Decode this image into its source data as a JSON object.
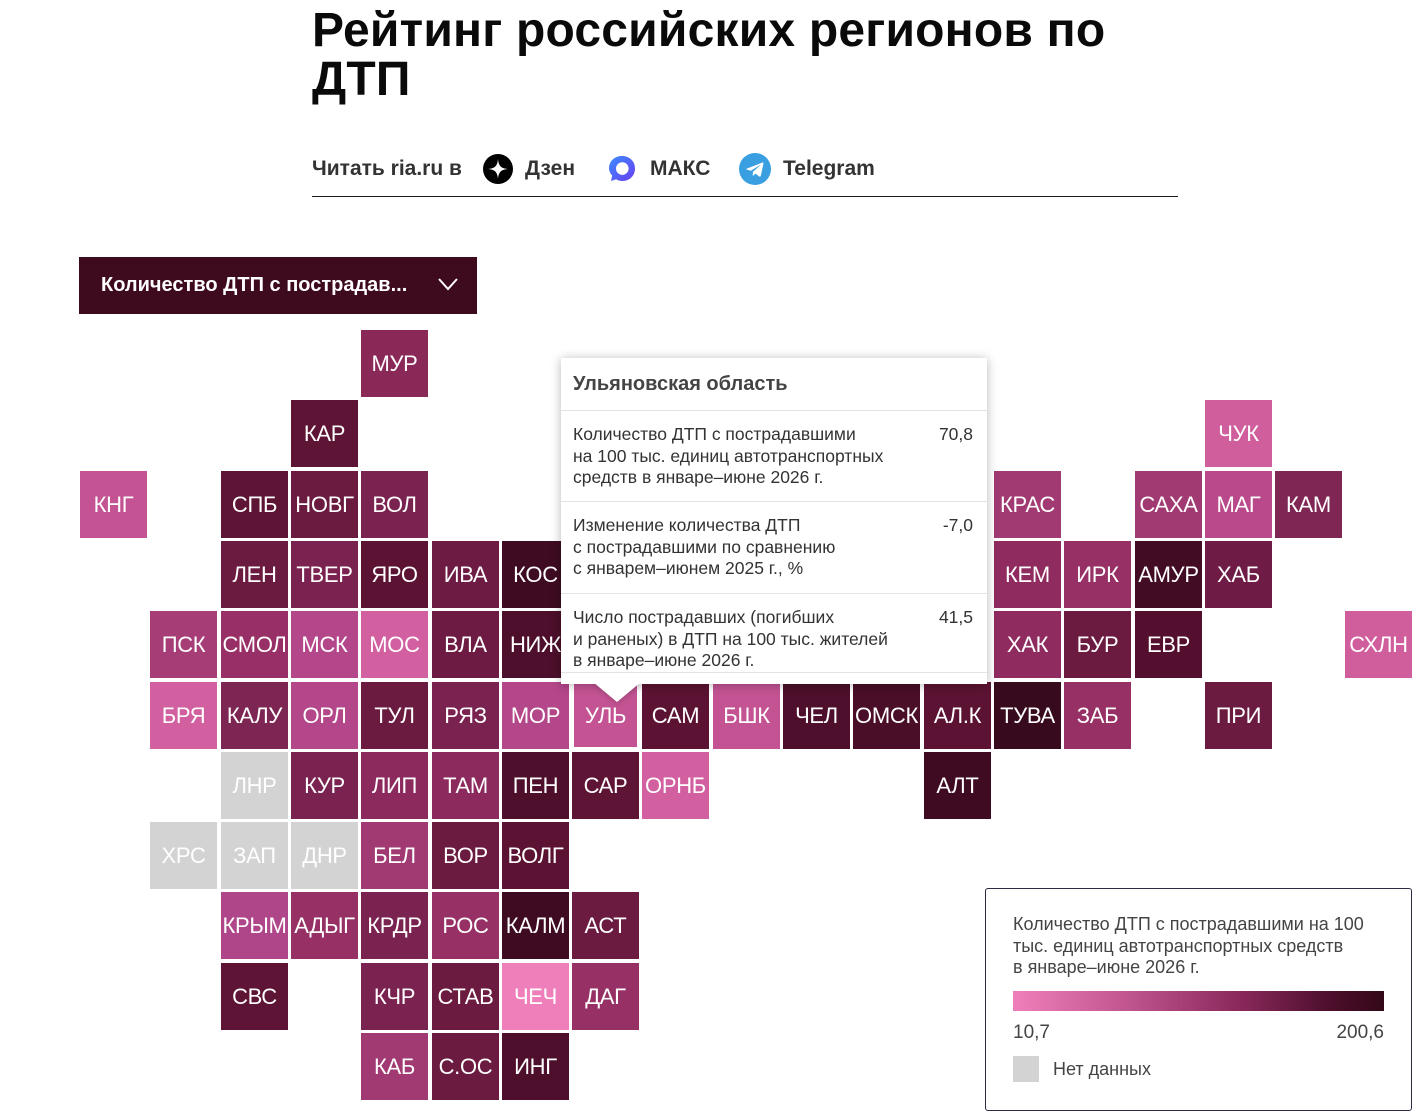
{
  "title": "Рейтинг российских регионов по ДТП",
  "read_bar": {
    "lead": "Читать ria.ru в",
    "links": [
      {
        "label": "Дзен",
        "icon": "dzen-icon"
      },
      {
        "label": "МАКС",
        "icon": "max-icon"
      },
      {
        "label": "Telegram",
        "icon": "telegram-icon"
      }
    ]
  },
  "dropdown": {
    "selected": "Количество ДТП с пострадав...",
    "icon": "chevron-down-icon"
  },
  "colors": {
    "no_data": "#d3d3d3",
    "scale": [
      "#ee7fba",
      "#c25691",
      "#8c2a5d",
      "#4e0f2c",
      "#330818"
    ],
    "dropdown_bg": "#3e0a1e"
  },
  "tiles": [
    {
      "label": "МУР",
      "color": "#8a2858",
      "row": 0,
      "col": 4
    },
    {
      "label": "КАР",
      "color": "#5e1434",
      "row": 1,
      "col": 3
    },
    {
      "label": "ЧУК",
      "color": "#d05e9d",
      "row": 1,
      "col": 16
    },
    {
      "label": "КНГ",
      "color": "#c35393",
      "row": 2,
      "col": 0
    },
    {
      "label": "СПБ",
      "color": "#5e1434",
      "row": 2,
      "col": 2
    },
    {
      "label": "НОВГ",
      "color": "#6b1a40",
      "row": 2,
      "col": 3
    },
    {
      "label": "ВОЛ",
      "color": "#7a2350",
      "row": 2,
      "col": 4
    },
    {
      "label": "КРАС",
      "color": "#a13a72",
      "row": 2,
      "col": 13
    },
    {
      "label": "САХА",
      "color": "#a13a72",
      "row": 2,
      "col": 15
    },
    {
      "label": "МАГ",
      "color": "#b9498a",
      "row": 2,
      "col": 16
    },
    {
      "label": "КАМ",
      "color": "#7f2655",
      "row": 2,
      "col": 17
    },
    {
      "label": "ЛЕН",
      "color": "#6b1a40",
      "row": 3,
      "col": 2
    },
    {
      "label": "ТВЕР",
      "color": "#7a2350",
      "row": 3,
      "col": 3
    },
    {
      "label": "ЯРО",
      "color": "#5c1333",
      "row": 3,
      "col": 4
    },
    {
      "label": "ИВА",
      "color": "#6d1b43",
      "row": 3,
      "col": 5
    },
    {
      "label": "КОС",
      "color": "#3f0b22",
      "row": 3,
      "col": 6
    },
    {
      "label": "КЕМ",
      "color": "#8f2b5f",
      "row": 3,
      "col": 13
    },
    {
      "label": "ИРК",
      "color": "#963065",
      "row": 3,
      "col": 14
    },
    {
      "label": "АМУР",
      "color": "#420c24",
      "row": 3,
      "col": 15
    },
    {
      "label": "ХАБ",
      "color": "#6e1c45",
      "row": 3,
      "col": 16
    },
    {
      "label": "ПСК",
      "color": "#a63d77",
      "row": 4,
      "col": 1
    },
    {
      "label": "СМОЛ",
      "color": "#992f67",
      "row": 4,
      "col": 2
    },
    {
      "label": "МСК",
      "color": "#b4468a",
      "row": 4,
      "col": 3
    },
    {
      "label": "МОС",
      "color": "#d25fa0",
      "row": 4,
      "col": 4
    },
    {
      "label": "ВЛА",
      "color": "#6d1b43",
      "row": 4,
      "col": 5
    },
    {
      "label": "НИЖ",
      "color": "#4d0f2b",
      "row": 4,
      "col": 6
    },
    {
      "label": "ХАК",
      "color": "#8f2b5f",
      "row": 4,
      "col": 13
    },
    {
      "label": "БУР",
      "color": "#6b1a40",
      "row": 4,
      "col": 14
    },
    {
      "label": "ЕВР",
      "color": "#530f2d",
      "row": 4,
      "col": 15
    },
    {
      "label": "СХЛН",
      "color": "#d05e9d",
      "row": 4,
      "col": 18
    },
    {
      "label": "БРЯ",
      "color": "#d25fa0",
      "row": 5,
      "col": 1
    },
    {
      "label": "КАЛУ",
      "color": "#7e2653",
      "row": 5,
      "col": 2
    },
    {
      "label": "ОРЛ",
      "color": "#b4468a",
      "row": 5,
      "col": 3
    },
    {
      "label": "ТУЛ",
      "color": "#6b1a40",
      "row": 5,
      "col": 4
    },
    {
      "label": "РЯЗ",
      "color": "#7a2350",
      "row": 5,
      "col": 5
    },
    {
      "label": "МОР",
      "color": "#b4468a",
      "row": 5,
      "col": 6
    },
    {
      "label": "УЛЬ",
      "color": "#c35393",
      "row": 5,
      "col": 7,
      "selected": true
    },
    {
      "label": "САМ",
      "color": "#5c1333",
      "row": 5,
      "col": 8
    },
    {
      "label": "БШК",
      "color": "#c35393",
      "row": 5,
      "col": 9
    },
    {
      "label": "ЧЕЛ",
      "color": "#4d0f2b",
      "row": 5,
      "col": 10
    },
    {
      "label": "ОМСК",
      "color": "#4a0e28",
      "row": 5,
      "col": 11
    },
    {
      "label": "АЛ.К",
      "color": "#5c1333",
      "row": 5,
      "col": 12
    },
    {
      "label": "ТУВА",
      "color": "#380a1e",
      "row": 5,
      "col": 13
    },
    {
      "label": "ЗАБ",
      "color": "#963065",
      "row": 5,
      "col": 14
    },
    {
      "label": "ПРИ",
      "color": "#6b1a40",
      "row": 5,
      "col": 16
    },
    {
      "label": "ЛНР",
      "color": "#d3d3d3",
      "row": 6,
      "col": 2
    },
    {
      "label": "КУР",
      "color": "#7a2350",
      "row": 6,
      "col": 3
    },
    {
      "label": "ЛИП",
      "color": "#8c2a5d",
      "row": 6,
      "col": 4
    },
    {
      "label": "ТАМ",
      "color": "#8c2a5d",
      "row": 6,
      "col": 5
    },
    {
      "label": "ПЕН",
      "color": "#4d0f2b",
      "row": 6,
      "col": 6
    },
    {
      "label": "САР",
      "color": "#5e1434",
      "row": 6,
      "col": 7
    },
    {
      "label": "ОРНБ",
      "color": "#d25fa0",
      "row": 6,
      "col": 8
    },
    {
      "label": "АЛТ",
      "color": "#3f0b22",
      "row": 6,
      "col": 12
    },
    {
      "label": "ХРС",
      "color": "#d3d3d3",
      "row": 7,
      "col": 1
    },
    {
      "label": "ЗАП",
      "color": "#d3d3d3",
      "row": 7,
      "col": 2
    },
    {
      "label": "ДНР",
      "color": "#d3d3d3",
      "row": 7,
      "col": 3
    },
    {
      "label": "БЕЛ",
      "color": "#a13a72",
      "row": 7,
      "col": 4
    },
    {
      "label": "ВОР",
      "color": "#6b1a40",
      "row": 7,
      "col": 5
    },
    {
      "label": "ВОЛГ",
      "color": "#5c1333",
      "row": 7,
      "col": 6
    },
    {
      "label": "КРЫМ",
      "color": "#b0468a",
      "row": 8,
      "col": 2
    },
    {
      "label": "АДЫГ",
      "color": "#963065",
      "row": 8,
      "col": 3
    },
    {
      "label": "КРДР",
      "color": "#7a2350",
      "row": 8,
      "col": 4
    },
    {
      "label": "РОС",
      "color": "#963065",
      "row": 8,
      "col": 5
    },
    {
      "label": "КАЛМ",
      "color": "#3f0b22",
      "row": 8,
      "col": 6
    },
    {
      "label": "АСТ",
      "color": "#6b1a40",
      "row": 8,
      "col": 7
    },
    {
      "label": "СВС",
      "color": "#5e1434",
      "row": 9,
      "col": 2
    },
    {
      "label": "КЧР",
      "color": "#7a2350",
      "row": 9,
      "col": 4
    },
    {
      "label": "СТАВ",
      "color": "#6b1a40",
      "row": 9,
      "col": 5
    },
    {
      "label": "ЧЕЧ",
      "color": "#ee7fba",
      "row": 9,
      "col": 6
    },
    {
      "label": "ДАГ",
      "color": "#963065",
      "row": 9,
      "col": 7
    },
    {
      "label": "КАБ",
      "color": "#a13a72",
      "row": 10,
      "col": 4
    },
    {
      "label": "С.ОС",
      "color": "#6b1a40",
      "row": 10,
      "col": 5
    },
    {
      "label": "ИНГ",
      "color": "#4d0f2b",
      "row": 10,
      "col": 6
    }
  ],
  "tooltip": {
    "region": "Ульяновская область",
    "rows": [
      {
        "label": "Количество ДТП с пострадавшими\nна 100 тыс. единиц автотранспортных\nсредств в январе–июне 2026 г.",
        "value": "70,8"
      },
      {
        "label": "Изменение количества ДТП\nс пострадавшими по сравнению\nс январем–июнем 2025 г., %",
        "value": "-7,0"
      },
      {
        "label": "Число пострадавших (погибших\nи раненых) в ДТП на 100 тыс. жителей\nв январе–июне 2026 г.",
        "value": "41,5"
      }
    ]
  },
  "legend": {
    "title": "Количество ДТП с пострадавшими на 100\nтыс. единиц автотранспортных средств\nв январе–июне 2026 г.",
    "min": "10,7",
    "max": "200,6",
    "no_data_label": "Нет данных"
  }
}
